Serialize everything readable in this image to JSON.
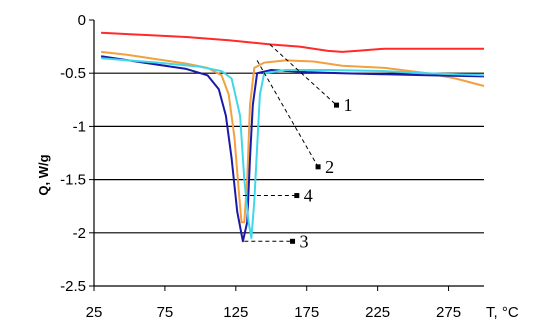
{
  "chart_data": {
    "type": "line",
    "xlabel": "T, °C",
    "ylabel": "Q, W/g",
    "xlim": [
      25,
      300
    ],
    "ylim": [
      -2.5,
      0
    ],
    "x_ticks": [
      "25",
      "75",
      "125",
      "175",
      "225",
      "275"
    ],
    "y_ticks": [
      "0",
      "-0.5",
      "-1",
      "-1.5",
      "-2",
      "-2.5"
    ],
    "grid": "horizontal",
    "series": [
      {
        "name": "1",
        "color": "#ff2a2a",
        "points": [
          [
            30,
            -0.12
          ],
          [
            60,
            -0.14
          ],
          [
            90,
            -0.16
          ],
          [
            120,
            -0.19
          ],
          [
            150,
            -0.23
          ],
          [
            170,
            -0.25
          ],
          [
            180,
            -0.27
          ],
          [
            190,
            -0.29
          ],
          [
            200,
            -0.3
          ],
          [
            210,
            -0.29
          ],
          [
            230,
            -0.27
          ],
          [
            260,
            -0.27
          ],
          [
            300,
            -0.27
          ]
        ]
      },
      {
        "name": "2",
        "color": "#f2a040",
        "points": [
          [
            30,
            -0.3
          ],
          [
            50,
            -0.33
          ],
          [
            70,
            -0.37
          ],
          [
            90,
            -0.41
          ],
          [
            105,
            -0.45
          ],
          [
            115,
            -0.52
          ],
          [
            120,
            -0.7
          ],
          [
            124,
            -1.1
          ],
          [
            127,
            -1.6
          ],
          [
            129,
            -1.9
          ],
          [
            131,
            -1.9
          ],
          [
            133,
            -1.5
          ],
          [
            135,
            -0.8
          ],
          [
            138,
            -0.45
          ],
          [
            145,
            -0.4
          ],
          [
            160,
            -0.38
          ],
          [
            180,
            -0.39
          ],
          [
            200,
            -0.43
          ],
          [
            230,
            -0.45
          ],
          [
            260,
            -0.5
          ],
          [
            280,
            -0.55
          ],
          [
            300,
            -0.62
          ]
        ]
      },
      {
        "name": "3",
        "color": "#1a1aa8",
        "points": [
          [
            30,
            -0.34
          ],
          [
            60,
            -0.4
          ],
          [
            90,
            -0.46
          ],
          [
            105,
            -0.52
          ],
          [
            113,
            -0.65
          ],
          [
            118,
            -0.9
          ],
          [
            122,
            -1.3
          ],
          [
            126,
            -1.8
          ],
          [
            130,
            -2.08
          ],
          [
            133,
            -1.9
          ],
          [
            135,
            -1.3
          ],
          [
            137,
            -0.8
          ],
          [
            140,
            -0.5
          ],
          [
            150,
            -0.47
          ],
          [
            175,
            -0.49
          ],
          [
            200,
            -0.5
          ],
          [
            230,
            -0.51
          ],
          [
            260,
            -0.52
          ],
          [
            300,
            -0.53
          ]
        ]
      },
      {
        "name": "4",
        "color": "#40d8e8",
        "points": [
          [
            30,
            -0.36
          ],
          [
            70,
            -0.4
          ],
          [
            100,
            -0.44
          ],
          [
            115,
            -0.48
          ],
          [
            122,
            -0.55
          ],
          [
            128,
            -0.9
          ],
          [
            131,
            -1.5
          ],
          [
            134,
            -1.9
          ],
          [
            136,
            -2.05
          ],
          [
            138,
            -1.7
          ],
          [
            140,
            -1.2
          ],
          [
            142,
            -0.7
          ],
          [
            145,
            -0.5
          ],
          [
            160,
            -0.47
          ],
          [
            190,
            -0.47
          ],
          [
            230,
            -0.48
          ],
          [
            260,
            -0.5
          ],
          [
            300,
            -0.52
          ]
        ]
      }
    ],
    "callouts": [
      {
        "label": "1",
        "from": [
          149,
          -0.23
        ],
        "to": [
          196,
          -0.8
        ]
      },
      {
        "label": "2",
        "from": [
          140,
          -0.38
        ],
        "to": [
          183,
          -1.38
        ]
      },
      {
        "label": "4",
        "from": [
          130,
          -1.65
        ],
        "to": [
          168,
          -1.65
        ]
      },
      {
        "label": "3",
        "from": [
          131,
          -2.08
        ],
        "to": [
          165,
          -2.08
        ]
      }
    ]
  }
}
